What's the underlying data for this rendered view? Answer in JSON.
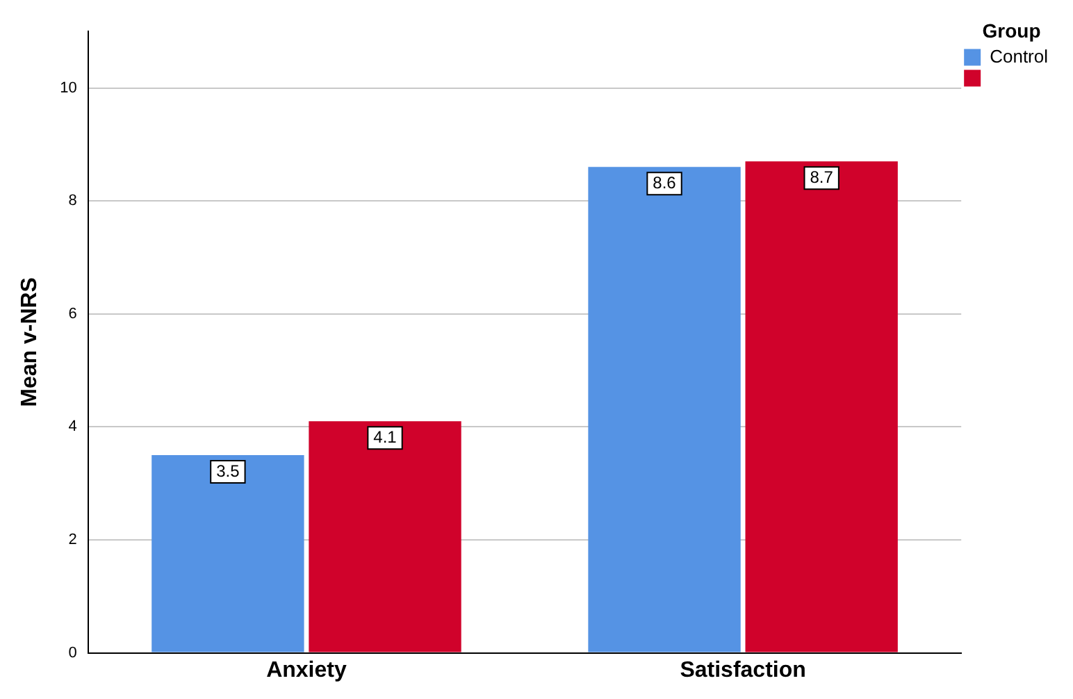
{
  "chart_data": {
    "type": "bar",
    "ylabel": "Mean v-NRS",
    "legend_title": "Group",
    "categories": [
      "Anxiety",
      "Satisfaction"
    ],
    "series": [
      {
        "name": "Control",
        "color": "#5593e4",
        "values": [
          3.5,
          8.6
        ]
      },
      {
        "color": "#d0022b",
        "values": [
          4.1,
          8.7
        ]
      }
    ],
    "ylim": [
      0,
      11
    ],
    "yticks": [
      0,
      2,
      4,
      6,
      8,
      10
    ],
    "grid": "y",
    "legend": "top right",
    "data_labels": true
  }
}
